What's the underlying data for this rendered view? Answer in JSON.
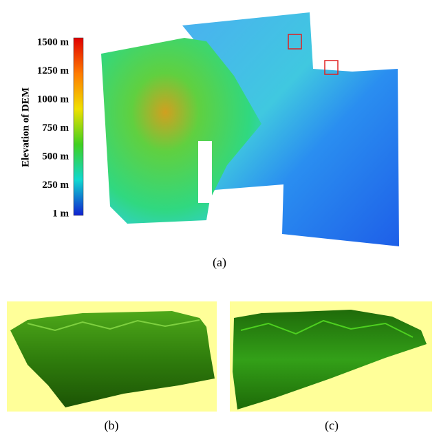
{
  "colorbar": {
    "title": "Elevation of DEM",
    "ticks": [
      "1500 m",
      "1250 m",
      "1000 m",
      "750 m",
      "500 m",
      "250 m",
      "1 m"
    ]
  },
  "panels": [
    {
      "label": "(a)"
    },
    {
      "label": "(b)"
    },
    {
      "label": "(c)"
    }
  ]
}
